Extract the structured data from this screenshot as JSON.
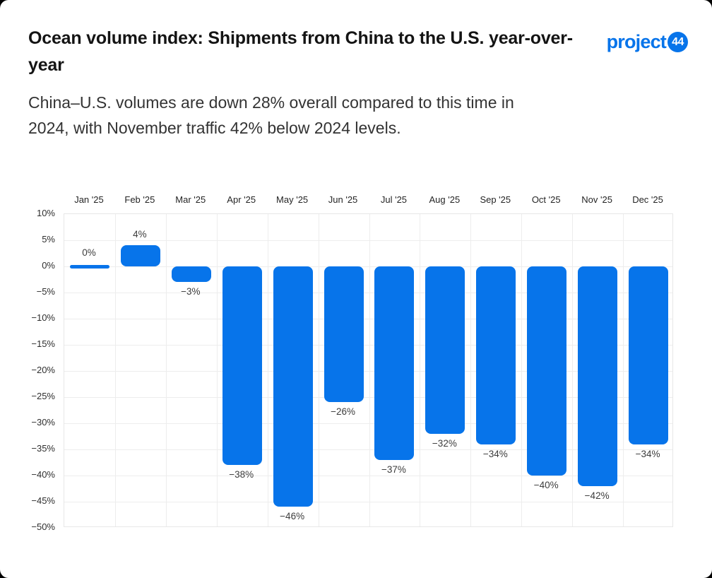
{
  "header": {
    "title": "Ocean volume index: Shipments from China to the U.S. year-over-year",
    "subtitle": "China–U.S. volumes are down 28% overall compared to this time in 2024, with November traffic 42% below 2024 levels.",
    "logo": {
      "text": "project",
      "badge": "44"
    }
  },
  "colors": {
    "brand_blue": "#0774EA",
    "bar": "#0774EA",
    "grid": "#ededed",
    "title_text": "#141414",
    "subtitle_text": "#333333",
    "card_bg": "#ffffff",
    "behind_card": "#000000"
  },
  "chart_data": {
    "type": "bar",
    "title": "Ocean volume index: Shipments from China to the U.S. year-over-year",
    "xlabel": "",
    "ylabel": "",
    "categories": [
      "Jan '25",
      "Feb '25",
      "Mar '25",
      "Apr '25",
      "May '25",
      "Jun '25",
      "Jul '25",
      "Aug '25",
      "Sep '25",
      "Oct '25",
      "Nov '25",
      "Dec '25"
    ],
    "values": [
      0,
      4,
      -3,
      -38,
      -46,
      -26,
      -37,
      -32,
      -34,
      -40,
      -42,
      -34
    ],
    "value_labels": [
      "0%",
      "4%",
      "−3%",
      "−38%",
      "−46%",
      "−26%",
      "−37%",
      "−32%",
      "−34%",
      "−40%",
      "−42%",
      "−34%"
    ],
    "yticks": [
      10,
      5,
      0,
      -5,
      -10,
      -15,
      -20,
      -25,
      -30,
      -35,
      -40,
      -45,
      -50
    ],
    "ytick_labels": [
      "10%",
      "5%",
      "0%",
      "−5%",
      "−10%",
      "−15%",
      "−20%",
      "−25%",
      "−30%",
      "−35%",
      "−40%",
      "−45%",
      "−50%"
    ],
    "ylim": [
      -50,
      10
    ],
    "grid": true,
    "legend": false,
    "bar_color": "#0774EA",
    "x_labels_position": "top"
  }
}
